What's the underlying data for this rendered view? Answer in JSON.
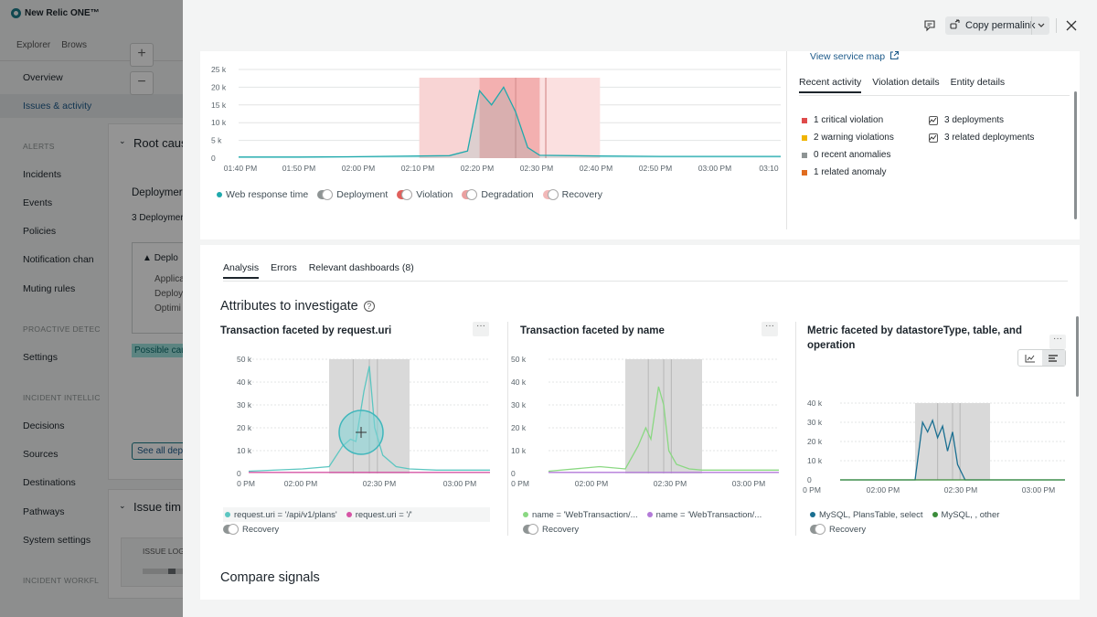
{
  "app": {
    "logo_text": "New Relic ONE™",
    "top_tabs": [
      "Explorer",
      "Brows"
    ],
    "nav": {
      "overview": "Overview",
      "issues": "Issues & activity",
      "section_alerts": "ALERTS",
      "incidents": "Incidents",
      "events": "Events",
      "policies": "Policies",
      "notification": "Notification chan",
      "muting": "Muting rules",
      "section_proactive": "PROACTIVE DETEC",
      "settings": "Settings",
      "section_intel": "INCIDENT INTELLIC",
      "decisions": "Decisions",
      "sources": "Sources",
      "destinations": "Destinations",
      "pathways": "Pathways",
      "system_settings": "System settings",
      "section_workflow": "INCIDENT WORKFL"
    },
    "bg": {
      "plus": "+",
      "minus": "−",
      "root_cause": "Root caus",
      "deploymer": "Deploymer",
      "deploy_count": "3 Deploymer",
      "deploy_box_title": "Deplo",
      "applica": "Applica",
      "deploy2": "Deploy",
      "optimi": "Optimi",
      "possible": "Possible cau",
      "see_all": "See all depl",
      "issue_tim": "Issue tim",
      "issue_log": "ISSUE LOG"
    }
  },
  "header": {
    "copy_permalink": "Copy permalink"
  },
  "activity": {
    "view_service_map": "View service map",
    "tabs": [
      "Recent activity",
      "Violation details",
      "Entity details"
    ],
    "left_items": [
      {
        "label": "1 critical violation",
        "color": "#df4b4b"
      },
      {
        "label": "2 warning violations",
        "color": "#f0b400"
      },
      {
        "label": "0 recent anomalies",
        "color": "#8e9494"
      },
      {
        "label": "1 related anomaly",
        "color": "#e06c1f"
      }
    ],
    "right_items": [
      "3 deployments",
      "3 related deployments"
    ]
  },
  "main_legend": {
    "series": "Web response time",
    "deployment": "Deployment",
    "violation": "Violation",
    "degradation": "Degradation",
    "recovery": "Recovery"
  },
  "analysis": {
    "tabs": [
      "Analysis",
      "Errors",
      "Relevant dashboards (8)"
    ],
    "attributes_title": "Attributes to investigate",
    "compare_title": "Compare signals",
    "more_label": "···",
    "facets": [
      {
        "title": "Transaction faceted by request.uri",
        "legend": [
          "request.uri = '/api/v1/plans'",
          "request.uri = '/'"
        ],
        "recovery": "Recovery"
      },
      {
        "title": "Transaction faceted by name",
        "legend": [
          "name = 'WebTransaction/...",
          "name = 'WebTransaction/..."
        ],
        "recovery": "Recovery"
      },
      {
        "title_line1": "Metric faceted by datastoreType, table, and",
        "title_line2": "operation",
        "legend": [
          "MySQL, PlansTable, select",
          "MySQL, , other"
        ],
        "recovery": "Recovery"
      }
    ]
  },
  "colors": {
    "teal": "#1fa9ac",
    "teal_light": "#5cc6c1",
    "pink": "#d654a5",
    "green": "#8ad882",
    "purple": "#b37ad8",
    "navy": "#1a6f91",
    "darkgreen": "#3b8c3a",
    "violation_band": "#f6c8c8",
    "violation_band_dark": "#f2a9a9",
    "gray_band": "#d9d9d9"
  },
  "chart_data": [
    {
      "type": "area",
      "title": "",
      "series": [
        {
          "name": "Web response time",
          "color": "#1fa9ac",
          "x": [
            "01:40 PM",
            "01:50 PM",
            "02:00 PM",
            "02:10 PM",
            "02:15 PM",
            "02:18 PM",
            "02:20 PM",
            "02:22 PM",
            "02:24 PM",
            "02:26 PM",
            "02:28 PM",
            "02:30 PM",
            "02:40 PM",
            "02:50 PM",
            "03:00 PM",
            "03:10"
          ],
          "values": [
            300,
            300,
            400,
            600,
            700,
            2000,
            19000,
            15000,
            20000,
            13000,
            3000,
            800,
            600,
            500,
            500,
            500
          ]
        }
      ],
      "x_ticks": [
        "01:40 PM",
        "01:50 PM",
        "02:00 PM",
        "02:10 PM",
        "02:20 PM",
        "02:30 PM",
        "02:40 PM",
        "02:50 PM",
        "03:00 PM",
        "03:10"
      ],
      "y_ticks": [
        "25 k",
        "20 k",
        "15 k",
        "10 k",
        "5 k",
        "0"
      ],
      "ylim": [
        0,
        25000
      ]
    },
    {
      "type": "line",
      "title": "Transaction faceted by request.uri",
      "series": [
        {
          "name": "request.uri = '/api/v1/plans'",
          "color": "#5cc6c1",
          "x": [
            "01:40 PM",
            "02:00 PM",
            "02:10 PM",
            "02:15 PM",
            "02:18 PM",
            "02:20 PM",
            "02:23 PM",
            "02:25 PM",
            "02:27 PM",
            "02:30 PM",
            "02:35 PM",
            "02:40 PM",
            "02:50 PM",
            "03:00 PM",
            "03:10 PM"
          ],
          "values": [
            1000,
            2000,
            3000,
            12000,
            15000,
            14000,
            36000,
            47000,
            20000,
            8000,
            3000,
            2000,
            1500,
            1500,
            1500
          ]
        },
        {
          "name": "request.uri = '/'",
          "color": "#d654a5",
          "x": [
            "01:40 PM",
            "03:10 PM"
          ],
          "values": [
            500,
            500
          ]
        }
      ],
      "x_ticks": [
        "0 PM",
        "02:00 PM",
        "02:30 PM",
        "03:00 PM"
      ],
      "y_ticks": [
        "50 k",
        "40 k",
        "30 k",
        "20 k",
        "10 k",
        "0"
      ],
      "ylim": [
        0,
        50000
      ]
    },
    {
      "type": "line",
      "title": "Transaction faceted by name",
      "series": [
        {
          "name": "name = 'WebTransaction/...",
          "color": "#8ad882",
          "x": [
            "01:40 PM",
            "02:00 PM",
            "02:10 PM",
            "02:15 PM",
            "02:18 PM",
            "02:20 PM",
            "02:23 PM",
            "02:25 PM",
            "02:27 PM",
            "02:30 PM",
            "02:35 PM",
            "02:40 PM",
            "02:50 PM",
            "03:00 PM",
            "03:10 PM"
          ],
          "values": [
            1000,
            3000,
            2000,
            12000,
            20000,
            15000,
            38000,
            30000,
            10000,
            4000,
            2000,
            1500,
            1500,
            1500,
            1500
          ]
        },
        {
          "name": "name = 'WebTransaction/...",
          "color": "#b37ad8",
          "x": [
            "01:40 PM",
            "03:10 PM"
          ],
          "values": [
            500,
            500
          ]
        }
      ],
      "x_ticks": [
        "0 PM",
        "02:00 PM",
        "02:30 PM",
        "03:00 PM"
      ],
      "y_ticks": [
        "50 k",
        "40 k",
        "30 k",
        "20 k",
        "10 k",
        "0"
      ],
      "ylim": [
        0,
        50000
      ]
    },
    {
      "type": "line",
      "title": "Metric faceted by datastoreType, table, and operation",
      "series": [
        {
          "name": "MySQL, PlansTable, select",
          "color": "#1a6f91",
          "x": [
            "01:40 PM",
            "02:10 PM",
            "02:13 PM",
            "02:15 PM",
            "02:17 PM",
            "02:19 PM",
            "02:21 PM",
            "02:23 PM",
            "02:25 PM",
            "02:27 PM",
            "02:30 PM",
            "03:10 PM"
          ],
          "values": [
            0,
            0,
            30000,
            25000,
            31000,
            22000,
            28000,
            15000,
            25000,
            8000,
            0,
            0
          ]
        },
        {
          "name": "MySQL, , other",
          "color": "#3b8c3a",
          "x": [
            "01:40 PM",
            "03:10 PM"
          ],
          "values": [
            0,
            0
          ]
        }
      ],
      "x_ticks": [
        "0 PM",
        "02:00 PM",
        "02:30 PM",
        "03:00 PM"
      ],
      "y_ticks": [
        "40 k",
        "30 k",
        "20 k",
        "10 k",
        "0"
      ],
      "ylim": [
        0,
        40000
      ]
    }
  ]
}
